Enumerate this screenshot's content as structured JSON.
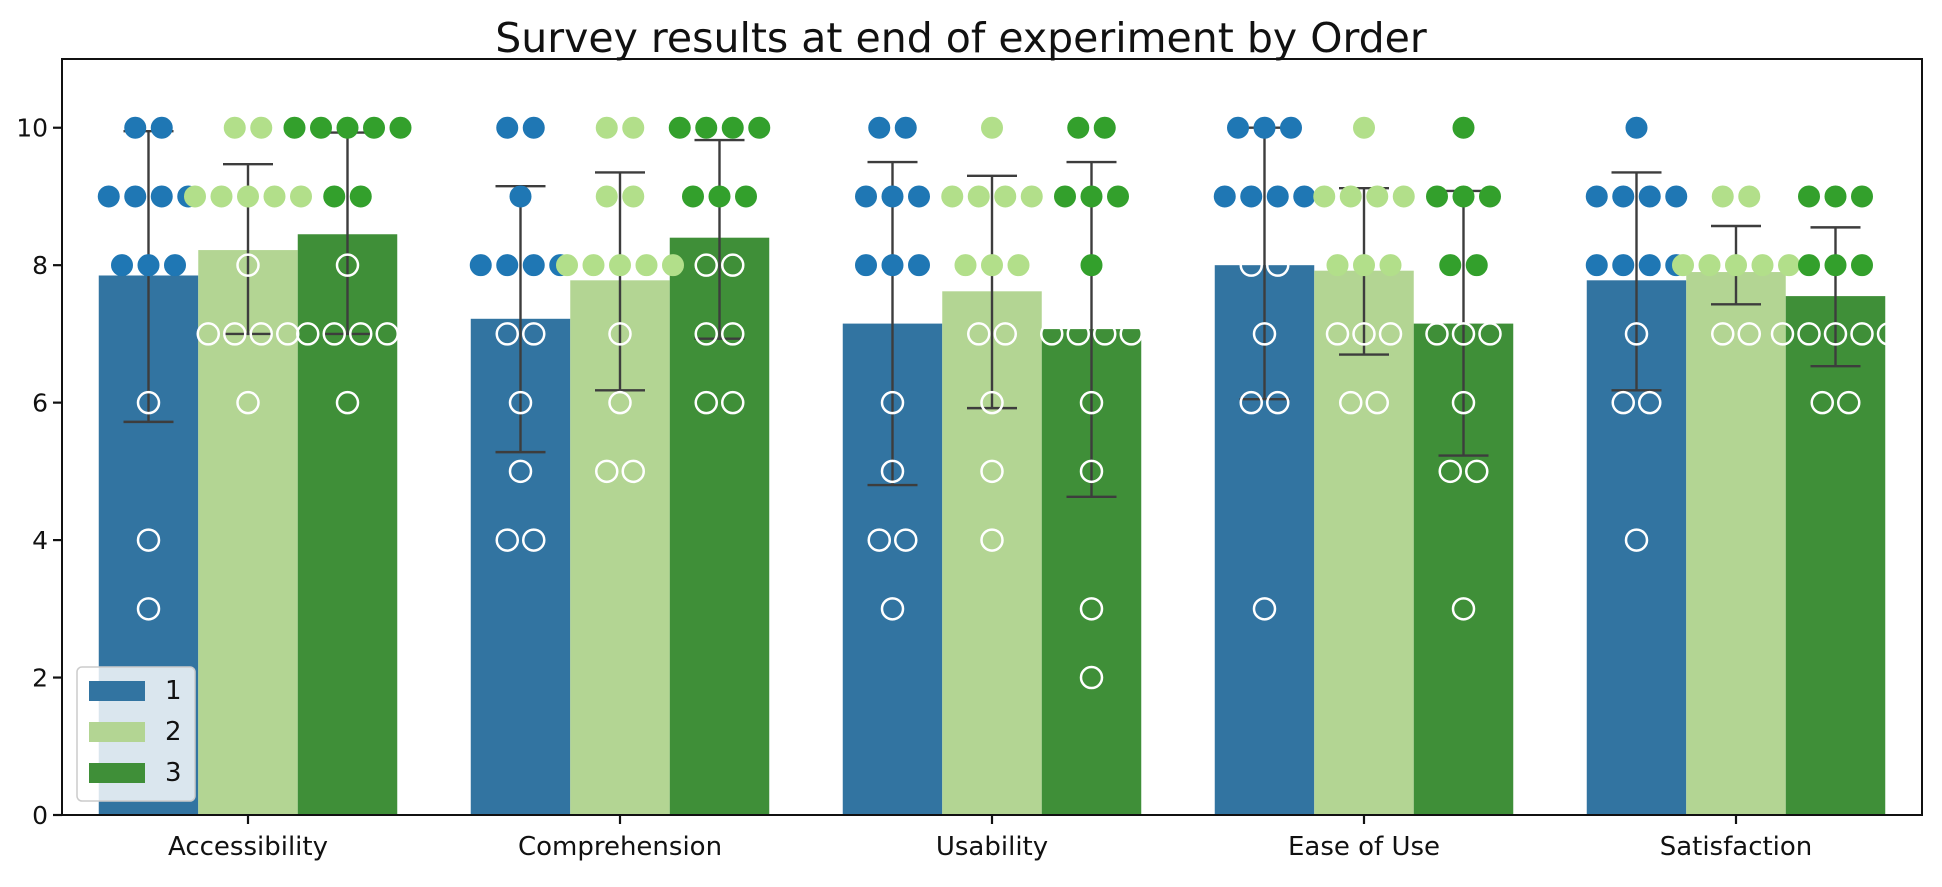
{
  "chart_data": {
    "type": "bar",
    "title": "Survey results at end of experiment by Order",
    "xlabel": "",
    "ylabel": "",
    "ylim": [
      0,
      11
    ],
    "yticks": [
      0,
      2,
      4,
      6,
      8,
      10
    ],
    "categories": [
      "Accessibility",
      "Comprehension",
      "Usability",
      "Ease of Use",
      "Satisfaction"
    ],
    "legend": {
      "position": "lower-left",
      "entries": [
        "1",
        "2",
        "3"
      ]
    },
    "series": [
      {
        "name": "1",
        "color": "#3274a1",
        "point_color": "#1f77b4",
        "values": [
          7.85,
          7.22,
          7.15,
          8.0,
          7.78
        ],
        "error_bars": [
          [
            5.72,
            9.95
          ],
          [
            5.28,
            9.15
          ],
          [
            4.8,
            9.5
          ],
          [
            6.05,
            10.0
          ],
          [
            6.18,
            9.35
          ]
        ],
        "points": [
          [
            10,
            10,
            9,
            9,
            9,
            9,
            8,
            8,
            8,
            6,
            4,
            3
          ],
          [
            10,
            10,
            9,
            8,
            8,
            8,
            8,
            7,
            7,
            6,
            5,
            4,
            4
          ],
          [
            10,
            10,
            9,
            9,
            9,
            8,
            8,
            8,
            6,
            5,
            4,
            4,
            3
          ],
          [
            10,
            10,
            10,
            9,
            9,
            9,
            9,
            8,
            8,
            7,
            6,
            6,
            3
          ],
          [
            10,
            9,
            9,
            9,
            9,
            8,
            8,
            8,
            8,
            7,
            6,
            6,
            4
          ]
        ]
      },
      {
        "name": "2",
        "color": "#b3d593",
        "point_color": "#b2df8a",
        "values": [
          8.22,
          7.78,
          7.62,
          7.92,
          7.9
        ],
        "error_bars": [
          [
            7.0,
            9.47
          ],
          [
            6.18,
            9.35
          ],
          [
            5.92,
            9.3
          ],
          [
            6.7,
            9.12
          ],
          [
            7.43,
            8.57
          ]
        ],
        "points": [
          [
            10,
            10,
            9,
            9,
            9,
            9,
            9,
            8,
            7,
            7,
            7,
            7,
            6
          ],
          [
            10,
            10,
            9,
            9,
            8,
            8,
            8,
            8,
            8,
            7,
            6,
            5,
            5
          ],
          [
            10,
            9,
            9,
            9,
            9,
            8,
            8,
            8,
            7,
            7,
            6,
            5,
            4
          ],
          [
            10,
            9,
            9,
            9,
            9,
            8,
            8,
            8,
            7,
            7,
            7,
            6,
            6
          ],
          [
            9,
            9,
            8,
            8,
            8,
            8,
            8,
            7,
            7
          ]
        ]
      },
      {
        "name": "3",
        "color": "#3f8f38",
        "point_color": "#33a02c",
        "values": [
          8.45,
          8.4,
          7.07,
          7.15,
          7.55
        ],
        "error_bars": [
          [
            7.0,
            9.93
          ],
          [
            6.93,
            9.82
          ],
          [
            4.63,
            9.5
          ],
          [
            5.23,
            9.08
          ],
          [
            6.53,
            8.55
          ]
        ],
        "points": [
          [
            10,
            10,
            10,
            10,
            10,
            9,
            9,
            8,
            7,
            7,
            7,
            7,
            6
          ],
          [
            10,
            10,
            10,
            10,
            9,
            9,
            9,
            8,
            8,
            7,
            7,
            6,
            6
          ],
          [
            10,
            10,
            9,
            9,
            9,
            8,
            7,
            7,
            7,
            7,
            6,
            5,
            3,
            2
          ],
          [
            10,
            9,
            9,
            9,
            8,
            8,
            7,
            7,
            7,
            6,
            5,
            5,
            3
          ],
          [
            9,
            9,
            9,
            8,
            8,
            8,
            7,
            7,
            7,
            7,
            7,
            6,
            6
          ]
        ]
      }
    ]
  }
}
